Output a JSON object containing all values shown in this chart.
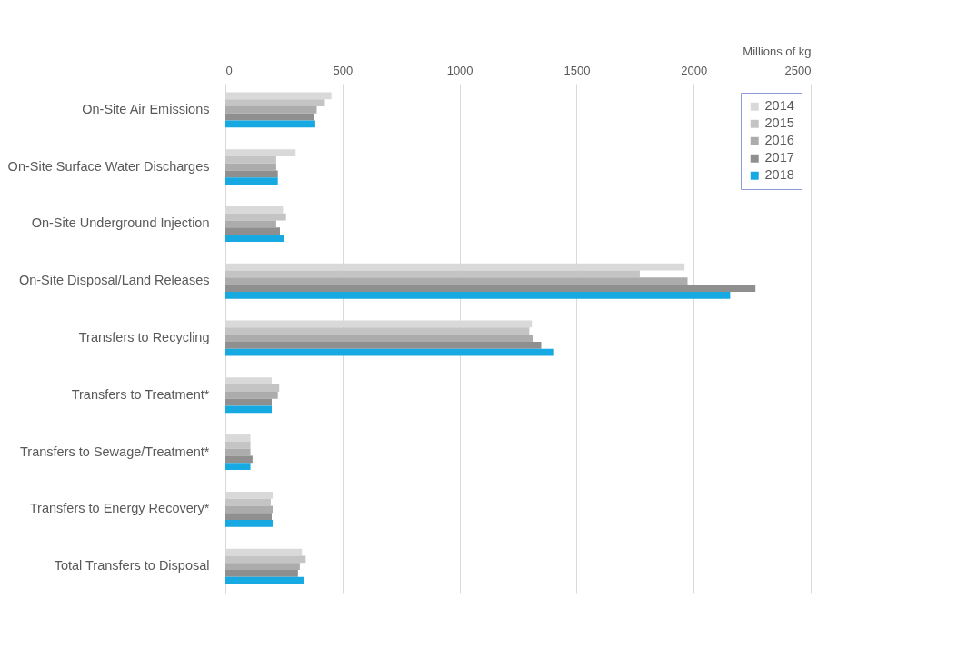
{
  "chart_data": {
    "type": "bar",
    "orientation": "horizontal",
    "xlabel": "Millions of kg",
    "categories": [
      "On-Site Air Emissions",
      "On-Site Surface Water Discharges",
      "On-Site Underground Injection",
      "On-Site Disposal/Land Releases",
      "Transfers to Recycling",
      "Transfers to Treatment*",
      "Transfers to Sewage/Treatment*",
      "Transfers to Energy Recovery*",
      "Total Transfers to Disposal"
    ],
    "series": [
      {
        "name": "2014",
        "color": "#d9d9d9",
        "values": [
          453,
          300,
          246,
          1961,
          1309,
          198,
          107,
          202,
          327
        ]
      },
      {
        "name": "2015",
        "color": "#c4c4c4",
        "values": [
          425,
          217,
          259,
          1770,
          1298,
          230,
          107,
          194,
          343
        ]
      },
      {
        "name": "2016",
        "color": "#acacac",
        "values": [
          390,
          217,
          217,
          1974,
          1314,
          224,
          107,
          202,
          318
        ]
      },
      {
        "name": "2017",
        "color": "#8f8f8f",
        "values": [
          378,
          224,
          233,
          2264,
          1349,
          198,
          116,
          198,
          310
        ]
      },
      {
        "name": "2018",
        "color": "#17a9e1",
        "values": [
          384,
          224,
          250,
          2156,
          1404,
          198,
          107,
          202,
          334
        ]
      }
    ],
    "xlim": [
      0,
      2500
    ],
    "xticks": [
      0,
      500,
      1000,
      1500,
      2000,
      2500
    ],
    "grid": "x",
    "legend": "top right"
  }
}
